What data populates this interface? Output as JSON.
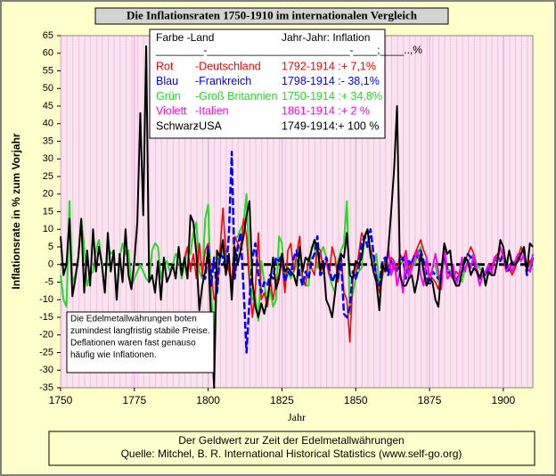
{
  "chart_data": {
    "type": "line",
    "title": "Die Inflationsraten 1750-1910 im internationalen Vergleich",
    "x_label": "Jahr",
    "y_label": "Inflationsrate in % zum Vorjahr",
    "xlim": [
      1750,
      1910
    ],
    "xticks": [
      1750,
      1775,
      1800,
      1825,
      1850,
      1875,
      1900
    ],
    "ylim": [
      -35,
      65
    ],
    "yticks": [
      65,
      60,
      55,
      50,
      45,
      40,
      35,
      30,
      25,
      20,
      15,
      10,
      5,
      0,
      -5,
      -10,
      -15,
      -20,
      -25,
      -30,
      -35
    ],
    "legend_header": [
      "Farbe   -Land",
      "Jahr-Jahr: Inflation",
      "________-________________________-____;____..,%"
    ],
    "annotation": [
      "Die Edelmetallwährungen boten",
      "zumindest langfristig stabile Preise.",
      "Deflationen waren fast genauso",
      "häufig wie Inflationen."
    ],
    "footer": [
      "Der Geldwert zur Zeit der Edelmetallwährungen",
      "Quelle: Mitchel, B. R. International  Historical Statistics     (www.self-go.org)"
    ],
    "x": [
      1750,
      1751,
      1752,
      1753,
      1754,
      1755,
      1756,
      1757,
      1758,
      1759,
      1760,
      1761,
      1762,
      1763,
      1764,
      1765,
      1766,
      1767,
      1768,
      1769,
      1770,
      1771,
      1772,
      1773,
      1774,
      1775,
      1776,
      1777,
      1778,
      1779,
      1780,
      1781,
      1782,
      1783,
      1784,
      1785,
      1786,
      1787,
      1788,
      1789,
      1790,
      1791,
      1792,
      1793,
      1794,
      1795,
      1796,
      1797,
      1798,
      1799,
      1800,
      1801,
      1802,
      1803,
      1804,
      1805,
      1806,
      1807,
      1808,
      1809,
      1810,
      1811,
      1812,
      1813,
      1814,
      1815,
      1816,
      1817,
      1818,
      1819,
      1820,
      1821,
      1822,
      1823,
      1824,
      1825,
      1826,
      1827,
      1828,
      1829,
      1830,
      1831,
      1832,
      1833,
      1834,
      1835,
      1836,
      1837,
      1838,
      1839,
      1840,
      1841,
      1842,
      1843,
      1844,
      1845,
      1846,
      1847,
      1848,
      1849,
      1850,
      1851,
      1852,
      1853,
      1854,
      1855,
      1856,
      1857,
      1858,
      1859,
      1860,
      1861,
      1862,
      1863,
      1864,
      1865,
      1866,
      1867,
      1868,
      1869,
      1870,
      1871,
      1872,
      1873,
      1874,
      1875,
      1876,
      1877,
      1878,
      1879,
      1880,
      1881,
      1882,
      1883,
      1884,
      1885,
      1886,
      1887,
      1888,
      1889,
      1890,
      1891,
      1892,
      1893,
      1894,
      1895,
      1896,
      1897,
      1898,
      1899,
      1900,
      1901,
      1902,
      1903,
      1904,
      1905,
      1906,
      1907,
      1908,
      1909,
      1910
    ],
    "series": [
      {
        "name": "-Groß Britannien",
        "color_label": "Grün",
        "period": "1750-1914 :+ 34,8%",
        "color": "#22dd22",
        "width": 2,
        "values": [
          -3,
          -10,
          -12,
          18,
          -5,
          -3,
          2,
          13,
          5,
          -6,
          -3,
          -2,
          4,
          7,
          0,
          -8,
          5,
          3,
          4,
          -10,
          2,
          6,
          3,
          4,
          -6,
          -4,
          -2,
          0,
          -2,
          -4,
          -5,
          4,
          6,
          5,
          -4,
          -1,
          1,
          -2,
          0,
          3,
          2,
          -4,
          0,
          5,
          3,
          9,
          12,
          -2,
          -4,
          13,
          17,
          -8,
          -20,
          2,
          1,
          5,
          -2,
          -1,
          -6,
          7,
          8,
          10,
          12,
          20,
          -3,
          -10,
          -9,
          -16,
          1,
          -5,
          -12,
          -7,
          -12,
          -10,
          8,
          6,
          -5,
          -2,
          -4,
          -2,
          0,
          4,
          -5,
          -6,
          -6,
          5,
          6,
          -1,
          3,
          5,
          2,
          -3,
          -6,
          -8,
          1,
          4,
          6,
          18,
          -14,
          -8,
          -4,
          -2,
          -1,
          8,
          10,
          2,
          0,
          3,
          -6,
          -2,
          2,
          0,
          -3,
          -1,
          -1,
          0,
          1,
          0,
          -2,
          0,
          0,
          3,
          5,
          -1,
          -5,
          -4,
          -1,
          0,
          -5,
          -3,
          1,
          -1,
          -2,
          -3,
          -4,
          -3,
          -5,
          -1,
          1,
          2,
          3,
          0,
          -1,
          -2,
          -2,
          -3,
          -1,
          1,
          2,
          1,
          3,
          1,
          -1,
          1,
          -1,
          2,
          1,
          2,
          -1,
          0,
          2
        ]
      },
      {
        "name": "-Deutschland",
        "color_label": "Rot",
        "period": "1792-1914 :+   7,1%",
        "color": "#ff0000",
        "width": 1.6,
        "values": [
          null,
          null,
          null,
          null,
          null,
          null,
          null,
          null,
          null,
          null,
          null,
          null,
          null,
          null,
          null,
          null,
          null,
          null,
          null,
          null,
          null,
          null,
          null,
          null,
          null,
          null,
          null,
          null,
          null,
          null,
          null,
          null,
          null,
          null,
          null,
          null,
          null,
          null,
          null,
          null,
          null,
          null,
          2,
          5,
          -2,
          3,
          -4,
          6,
          -3,
          4,
          6,
          -2,
          -10,
          -8,
          4,
          16,
          3,
          -2,
          -5,
          8,
          6,
          4,
          13,
          8,
          -6,
          -15,
          -7,
          9,
          -10,
          -8,
          -12,
          -4,
          -10,
          -5,
          -3,
          1,
          -8,
          4,
          6,
          -2,
          3,
          8,
          -4,
          -6,
          2,
          -1,
          -3,
          5,
          4,
          -2,
          1,
          -3,
          5,
          2,
          -5,
          3,
          -8,
          -10,
          -22,
          -4,
          -3,
          3,
          9,
          7,
          10,
          4,
          2,
          -3,
          -8,
          -4,
          2,
          -1,
          2,
          1,
          -2,
          3,
          1,
          4,
          -2,
          1,
          3,
          5,
          7,
          4,
          2,
          -3,
          -4,
          -5,
          -7,
          -3,
          2,
          -2,
          -3,
          -4,
          -2,
          -3,
          -2,
          1,
          3,
          5,
          3,
          -1,
          -4,
          -3,
          -3,
          0,
          -1,
          2,
          3,
          1,
          4,
          -2,
          -1,
          -3,
          -1,
          2,
          5,
          3,
          -2,
          1,
          2
        ]
      },
      {
        "name": "-Frankreich",
        "color_label": "Blau",
        "period": "1798-1914 :- 38,1%",
        "color": "#0000ff",
        "width": 2.5,
        "dashed": true,
        "values": [
          null,
          null,
          null,
          null,
          null,
          null,
          null,
          null,
          null,
          null,
          null,
          null,
          null,
          null,
          null,
          null,
          null,
          null,
          null,
          null,
          null,
          null,
          null,
          null,
          null,
          null,
          null,
          null,
          null,
          null,
          null,
          null,
          null,
          null,
          null,
          null,
          null,
          null,
          null,
          null,
          null,
          null,
          null,
          null,
          null,
          null,
          null,
          null,
          -3,
          -4,
          5,
          -6,
          2,
          -8,
          3,
          2,
          -2,
          8,
          32,
          -4,
          5,
          9,
          -7,
          -25,
          -10,
          2,
          6,
          -3,
          -8,
          -5,
          -6,
          -3,
          -4,
          2,
          1,
          3,
          -5,
          -2,
          -3,
          2,
          4,
          -3,
          -6,
          -2,
          -4,
          1,
          3,
          8,
          -3,
          -2,
          2,
          -1,
          -5,
          -3,
          -4,
          2,
          -14,
          -15,
          -12,
          -2,
          -4,
          -1,
          6,
          8,
          5,
          10,
          3,
          -4,
          -6,
          1,
          2,
          -3,
          1,
          -1,
          -2,
          0,
          2,
          -4,
          1,
          0,
          3,
          2,
          4,
          1,
          -3,
          -6,
          -2,
          -3,
          -4,
          -2,
          2,
          -1,
          -3,
          -2,
          -5,
          -3,
          -2,
          1,
          3,
          2,
          1,
          -2,
          -4,
          -3,
          -3,
          -1,
          -2,
          1,
          2,
          1,
          3,
          -1,
          -2,
          1,
          0,
          2,
          3,
          4,
          -3,
          -2,
          2
        ]
      },
      {
        "name": "-Italien",
        "color_label": "Violett",
        "period": "1861-1914 :+   2   %",
        "color": "#ff00ff",
        "width": 2,
        "values": [
          null,
          null,
          null,
          null,
          null,
          null,
          null,
          null,
          null,
          null,
          null,
          null,
          null,
          null,
          null,
          null,
          null,
          null,
          null,
          null,
          null,
          null,
          null,
          null,
          null,
          null,
          null,
          null,
          null,
          null,
          null,
          null,
          null,
          null,
          null,
          null,
          null,
          null,
          null,
          null,
          null,
          null,
          null,
          null,
          null,
          null,
          null,
          null,
          null,
          null,
          null,
          null,
          null,
          null,
          null,
          null,
          null,
          null,
          null,
          null,
          null,
          null,
          null,
          null,
          null,
          null,
          null,
          null,
          null,
          null,
          null,
          null,
          null,
          null,
          null,
          null,
          null,
          null,
          null,
          null,
          null,
          null,
          null,
          null,
          null,
          null,
          null,
          null,
          null,
          null,
          null,
          null,
          null,
          null,
          null,
          null,
          null,
          null,
          null,
          null,
          null,
          null,
          null,
          null,
          null,
          null,
          null,
          null,
          null,
          null,
          null,
          5,
          -3,
          1,
          -6,
          -2,
          -8,
          3,
          -4,
          -1,
          2,
          4,
          -3,
          -6,
          2,
          -5,
          -1,
          3,
          -2,
          -7,
          6,
          -4,
          -3,
          0,
          -6,
          -3,
          2,
          -2,
          1,
          -1,
          3,
          -2,
          -6,
          -3,
          -2,
          0,
          -3,
          2,
          1,
          5,
          2,
          -2,
          0,
          -2,
          1,
          3,
          1,
          3,
          -1,
          -2,
          3
        ]
      },
      {
        "name": "-USA",
        "color_label": "Schwarz",
        "period": "1749-1914:+ 100 %",
        "color": "#000000",
        "width": 2,
        "values": [
          8,
          -3,
          0,
          13,
          -9,
          -4,
          2,
          13,
          -8,
          4,
          -6,
          10,
          -2,
          5,
          0,
          -8,
          9,
          -2,
          4,
          -10,
          3,
          -5,
          10,
          -3,
          -7,
          1,
          12,
          43,
          14,
          62,
          -5,
          -3,
          -8,
          1,
          -10,
          2,
          -5,
          -3,
          0,
          -4,
          5,
          -3,
          2,
          -4,
          14,
          12,
          3,
          -13,
          -6,
          -2,
          4,
          -16,
          -35,
          4,
          2,
          7,
          -3,
          3,
          -10,
          5,
          0,
          4,
          8,
          14,
          18,
          -5,
          -12,
          -15,
          -11,
          -14,
          -10,
          -5,
          2,
          -7,
          -4,
          3,
          -2,
          -1,
          -2,
          -3,
          -6,
          5,
          -2,
          2,
          1,
          4,
          7,
          5,
          -2,
          1,
          -10,
          -12,
          -15,
          -8,
          0,
          3,
          2,
          9,
          -3,
          -4,
          1,
          0,
          2,
          8,
          10,
          3,
          -2,
          -5,
          -13,
          0,
          -2,
          4,
          15,
          27,
          45,
          -3,
          -6,
          -6,
          -4,
          -3,
          -8,
          -4,
          3,
          -2,
          -6,
          -4,
          -5,
          -10,
          -12,
          -2,
          6,
          3,
          4,
          -4,
          -6,
          -6,
          -2,
          2,
          1,
          -3,
          -1,
          -2,
          -4,
          -1,
          -6,
          -2,
          -3,
          -3,
          1,
          7,
          5,
          -1,
          4,
          0,
          0,
          1,
          3,
          5,
          -2,
          6,
          5
        ]
      }
    ]
  }
}
